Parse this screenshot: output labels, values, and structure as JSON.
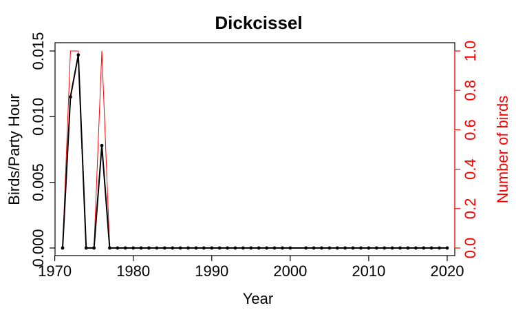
{
  "chart_data": {
    "type": "line",
    "title": "Dickcissel",
    "xlabel": "Year",
    "ylabel_left": "Birds/Party Hour",
    "ylabel_right": "Number of birds",
    "xlim": [
      1970,
      2020
    ],
    "ylim_left": [
      0,
      0.015
    ],
    "ylim_right": [
      0,
      1
    ],
    "x_ticks": [
      "1970",
      "1980",
      "1990",
      "2000",
      "2010",
      "2020"
    ],
    "y_ticks_left": [
      "0.000",
      "0.005",
      "0.010",
      "0.015"
    ],
    "y_ticks_right": [
      "0.0",
      "0.2",
      "0.4",
      "0.6",
      "0.8",
      "1.0"
    ],
    "colors": {
      "left_series": "#000000",
      "right_series": "#ff0000",
      "right_axis": "#ff0000"
    },
    "series": [
      {
        "axis": "left",
        "points": [
          [
            1971,
            0
          ],
          [
            1972,
            0.0115
          ],
          [
            1973,
            0.0147
          ],
          [
            1974,
            0
          ],
          [
            1975,
            0
          ],
          [
            1976,
            0.0078
          ],
          [
            1977,
            0
          ],
          [
            1978,
            0
          ],
          [
            1979,
            0
          ],
          [
            1980,
            0
          ],
          [
            1981,
            0
          ],
          [
            1982,
            0
          ],
          [
            1983,
            0
          ],
          [
            1984,
            0
          ],
          [
            1985,
            0
          ],
          [
            1986,
            0
          ],
          [
            1987,
            0
          ],
          [
            1988,
            0
          ],
          [
            1989,
            0
          ],
          [
            1990,
            0
          ],
          [
            1991,
            0
          ],
          [
            1992,
            0
          ],
          [
            1993,
            0
          ],
          [
            1994,
            0
          ],
          [
            1995,
            0
          ],
          [
            1996,
            0
          ],
          [
            1997,
            0
          ],
          [
            1998,
            0
          ],
          [
            1999,
            0
          ],
          [
            2000,
            0
          ],
          [
            2002,
            0
          ],
          [
            2003,
            0
          ],
          [
            2004,
            0
          ],
          [
            2005,
            0
          ],
          [
            2006,
            0
          ],
          [
            2007,
            0
          ],
          [
            2008,
            0
          ],
          [
            2009,
            0
          ],
          [
            2010,
            0
          ],
          [
            2011,
            0
          ],
          [
            2012,
            0
          ],
          [
            2013,
            0
          ],
          [
            2014,
            0
          ],
          [
            2015,
            0
          ],
          [
            2016,
            0
          ],
          [
            2017,
            0
          ],
          [
            2018,
            0
          ],
          [
            2019,
            0
          ],
          [
            2020,
            0
          ]
        ]
      },
      {
        "axis": "right",
        "points": [
          [
            1971,
            0
          ],
          [
            1972,
            1
          ],
          [
            1973,
            1
          ],
          [
            1974,
            0
          ],
          [
            1975,
            0
          ],
          [
            1976,
            1
          ],
          [
            1977,
            0
          ],
          [
            1978,
            0
          ],
          [
            1979,
            0
          ],
          [
            1980,
            0
          ],
          [
            1981,
            0
          ],
          [
            1982,
            0
          ],
          [
            1983,
            0
          ],
          [
            1984,
            0
          ],
          [
            1985,
            0
          ],
          [
            1986,
            0
          ],
          [
            1987,
            0
          ],
          [
            1988,
            0
          ],
          [
            1989,
            0
          ],
          [
            1990,
            0
          ],
          [
            1991,
            0
          ],
          [
            1992,
            0
          ],
          [
            1993,
            0
          ],
          [
            1994,
            0
          ],
          [
            1995,
            0
          ],
          [
            1996,
            0
          ],
          [
            1997,
            0
          ],
          [
            1998,
            0
          ],
          [
            1999,
            0
          ],
          [
            2000,
            0
          ],
          [
            2002,
            0
          ],
          [
            2003,
            0
          ],
          [
            2004,
            0
          ],
          [
            2005,
            0
          ],
          [
            2006,
            0
          ],
          [
            2007,
            0
          ],
          [
            2008,
            0
          ],
          [
            2009,
            0
          ],
          [
            2010,
            0
          ],
          [
            2011,
            0
          ],
          [
            2012,
            0
          ],
          [
            2013,
            0
          ],
          [
            2014,
            0
          ],
          [
            2015,
            0
          ],
          [
            2016,
            0
          ],
          [
            2017,
            0
          ],
          [
            2018,
            0
          ],
          [
            2019,
            0
          ],
          [
            2020,
            0
          ]
        ]
      }
    ]
  }
}
